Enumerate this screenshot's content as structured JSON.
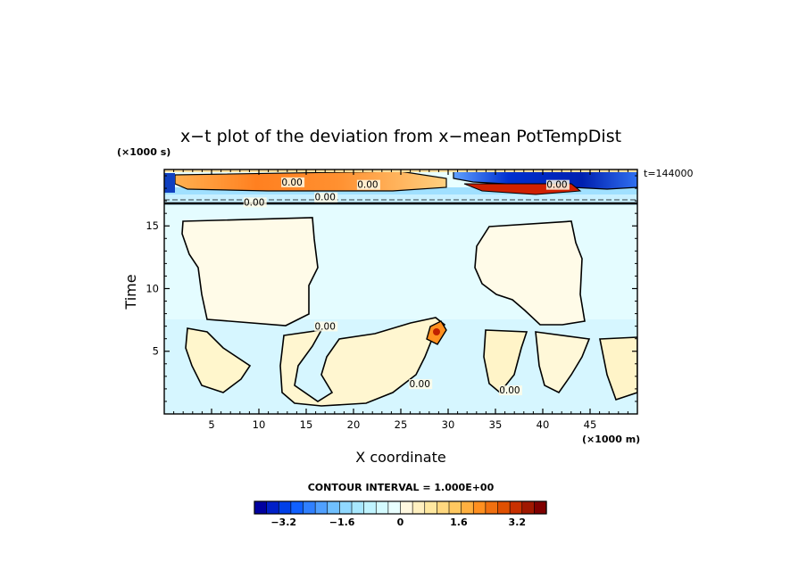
{
  "chart_data": {
    "type": "heatmap",
    "title": "x−t plot of the deviation from x−mean PotTempDist",
    "xlabel": "X coordinate",
    "ylabel": "Time",
    "x_unit": "(×1000 m)",
    "y_unit": "(×1000 s)",
    "time_label": "t=144000",
    "xlim": [
      0,
      50
    ],
    "ylim": [
      0,
      19.5
    ],
    "x_ticks": [
      5,
      10,
      15,
      20,
      25,
      30,
      35,
      40,
      45
    ],
    "y_ticks": [
      5,
      10,
      15
    ],
    "contour_interval_text": "CONTOUR INTERVAL = 1.000E+00",
    "contour_labels": [
      {
        "text": "0.00",
        "x": 9.5,
        "y": 16.7
      },
      {
        "text": "0.00",
        "x": 17,
        "y": 17.1
      },
      {
        "text": "0.00",
        "x": 13.5,
        "y": 18.3
      },
      {
        "text": "0.00",
        "x": 21.5,
        "y": 18.1
      },
      {
        "text": "0.00",
        "x": 41.5,
        "y": 18.1
      },
      {
        "text": "0.00",
        "x": 17,
        "y": 6.8
      },
      {
        "text": "0.00",
        "x": 27,
        "y": 2.2
      },
      {
        "text": "0.00",
        "x": 36.5,
        "y": 1.7
      }
    ],
    "colorbar": {
      "min": -4,
      "max": 4,
      "ticks": [
        "−3.2",
        "−1.6",
        "0",
        "1.6",
        "3.2"
      ],
      "tick_values": [
        -3.2,
        -1.6,
        0,
        1.6,
        3.2
      ]
    },
    "field_regions": [
      {
        "desc": "warm core top band",
        "x": [
          3,
          27
        ],
        "y": [
          18.2,
          19.2
        ],
        "value": 2.5
      },
      {
        "desc": "cold core top band",
        "x": [
          31,
          49
        ],
        "y": [
          18.3,
          19.5
        ],
        "value": -3.0
      },
      {
        "desc": "warm layer below cold",
        "x": [
          33,
          42
        ],
        "y": [
          17.9,
          18.3
        ],
        "value": 3.0
      },
      {
        "desc": "light blue thin layer",
        "x": [
          0,
          50
        ],
        "y": [
          17.5,
          18.1
        ],
        "value": -0.6
      },
      {
        "desc": "upper light-blue background",
        "x": [
          0,
          50
        ],
        "y": [
          7.5,
          17.5
        ],
        "value": -0.3
      },
      {
        "desc": "left warm blob",
        "x": [
          2,
          16
        ],
        "y": [
          7.6,
          15.9
        ],
        "value": 0.3
      },
      {
        "desc": "right warm blob",
        "x": [
          33,
          44
        ],
        "y": [
          7.6,
          15.3
        ],
        "value": 0.3
      },
      {
        "desc": "lower light-blue background",
        "x": [
          0,
          50
        ],
        "y": [
          0,
          7.5
        ],
        "value": -0.4
      },
      {
        "desc": "warm spot near x=29",
        "x": [
          28,
          30
        ],
        "y": [
          5.2,
          7.0
        ],
        "value": 2.5
      }
    ],
    "colors": {
      "deep_blue": "#0000c0",
      "blue": "#2060ff",
      "light_blue": "#c8f0ff",
      "pale_cyan": "#e8ffff",
      "cream": "#fffbe8",
      "yellow": "#ffe8a0",
      "orange": "#ff9020",
      "red": "#d02000",
      "dark_red": "#900000"
    }
  }
}
